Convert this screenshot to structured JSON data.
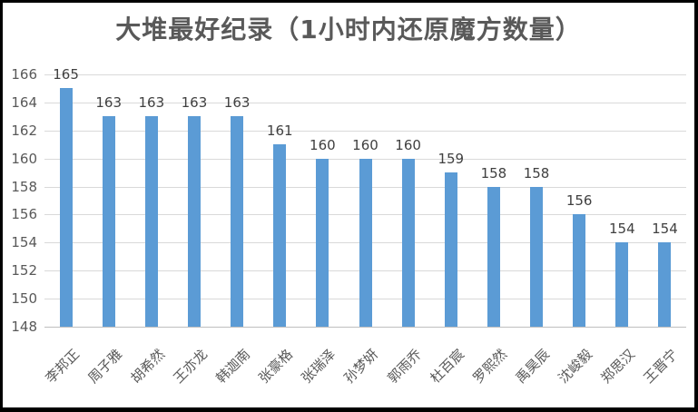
{
  "chart_data": {
    "type": "bar",
    "title": "大堆最好纪录（1小时内还原魔方数量）",
    "categories": [
      "李邦正",
      "周子雅",
      "胡希然",
      "王亦龙",
      "韩迦南",
      "张豪格",
      "张瑞泽",
      "孙梦妍",
      "郭雨乔",
      "杜百宸",
      "罗熙然",
      "禹昊辰",
      "沈峻毅",
      "郑思汉",
      "王晋宁"
    ],
    "values": [
      165,
      163,
      163,
      163,
      163,
      161,
      160,
      160,
      160,
      159,
      158,
      158,
      156,
      154,
      154
    ],
    "xlabel": "",
    "ylabel": "",
    "ylim": [
      148,
      166
    ],
    "ytick_step": 2,
    "yticks": [
      148,
      150,
      152,
      154,
      156,
      158,
      160,
      162,
      164,
      166
    ],
    "grid": true,
    "legend": "none",
    "data_labels": true,
    "colors": {
      "bar": "#5b9bd5",
      "gridline": "#d9d9d9",
      "axis_line": "#bfbfbf",
      "tick_label": "#595959",
      "value_label": "#404040",
      "title": "#595959",
      "frame_border": "#000000",
      "background": "#ffffff"
    }
  }
}
